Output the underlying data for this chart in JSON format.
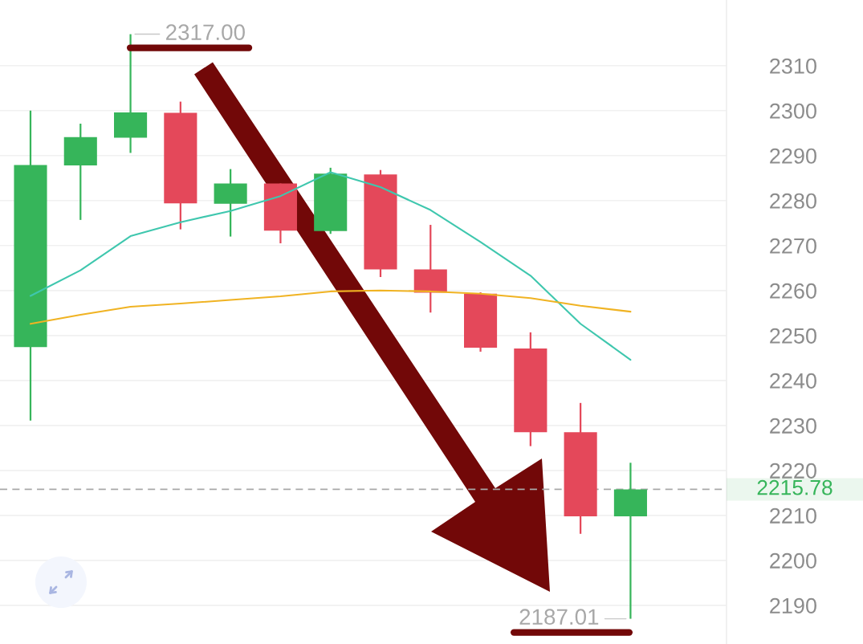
{
  "chart_data": {
    "type": "candlestick",
    "categories": [
      null,
      null,
      null,
      null,
      null,
      null,
      null,
      null,
      null,
      null,
      null,
      null,
      null
    ],
    "ohlc": [
      [
        2247.4,
        2300.0,
        2231.1,
        2287.9
      ],
      [
        2287.8,
        2297.1,
        2275.7,
        2294.1
      ],
      [
        2294.0,
        2317.0,
        2290.6,
        2299.6
      ],
      [
        2299.5,
        2302.0,
        2273.6,
        2279.4
      ],
      [
        2279.3,
        2287.0,
        2272.0,
        2283.8
      ],
      [
        2283.8,
        2283.8,
        2270.5,
        2273.3
      ],
      [
        2273.2,
        2287.3,
        2272.6,
        2286.0
      ],
      [
        2285.8,
        2286.8,
        2263.0,
        2264.7
      ],
      [
        2264.7,
        2274.6,
        2255.1,
        2259.5
      ],
      [
        2259.3,
        2259.6,
        2246.4,
        2247.3
      ],
      [
        2247.1,
        2250.7,
        2225.4,
        2228.5
      ],
      [
        2228.5,
        2235.0,
        2205.9,
        2209.8
      ],
      [
        2209.8,
        2221.7,
        2187.01,
        2215.78
      ]
    ],
    "colors": [
      "#36b55a",
      "#36b55a",
      "#36b55a",
      "#e4485a",
      "#36b55a",
      "#e4485a",
      "#36b55a",
      "#e4485a",
      "#e4485a",
      "#e4485a",
      "#e4485a",
      "#e4485a",
      "#36b55a"
    ],
    "series": [
      {
        "type": "line",
        "color": "#3fc7ae",
        "values": [
          2258.8,
          2264.5,
          2272.1,
          2275.2,
          2277.7,
          2281.0,
          2286.3,
          2283.0,
          2277.9,
          2270.8,
          2263.3,
          2252.6,
          2244.6
        ]
      },
      {
        "type": "line",
        "color": "#f0b323",
        "values": [
          2252.6,
          2254.6,
          2256.4,
          2257.1,
          2257.9,
          2258.7,
          2259.8,
          2260.0,
          2259.8,
          2259.3,
          2258.3,
          2256.6,
          2255.3
        ]
      }
    ],
    "ylim": [
      2181.4,
      2324.6
    ],
    "yticks": [
      2190,
      2200,
      2210,
      2220,
      2230,
      2240,
      2250,
      2260,
      2270,
      2280,
      2290,
      2300,
      2310
    ],
    "grid": "y",
    "tick_labels": "y",
    "ref_lines": [
      {
        "axis": "y",
        "value": 2215.78,
        "label": "2215.78",
        "color": "#a8a8a8",
        "line_style": "dashed"
      }
    ],
    "annotations": [
      "2317.00",
      "2187.01"
    ]
  }
}
